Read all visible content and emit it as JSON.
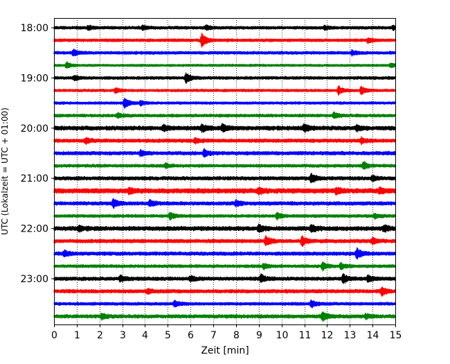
{
  "chart_data": {
    "type": "line",
    "title": "",
    "xlabel": "Zeit  [min]",
    "ylabel": "UTC (Lokalzeit = UTC + 01:00)",
    "xlim": [
      0,
      15
    ],
    "x_ticks": [
      0,
      1,
      2,
      3,
      4,
      5,
      6,
      7,
      8,
      9,
      10,
      11,
      12,
      13,
      14,
      15
    ],
    "y_tick_labels": [
      "18:00",
      "19:00",
      "20:00",
      "21:00",
      "22:00",
      "23:00"
    ],
    "y_tick_every_n_traces": 4,
    "grid": {
      "x_vertical_dotted": true
    },
    "trace_interval_minutes": 15,
    "trace_colors": [
      "#000000",
      "#ff0000",
      "#0000ff",
      "#008000"
    ],
    "traces": [
      {
        "label": "18:00",
        "color": "#000000",
        "base_amp": 2.5,
        "events": [
          [
            1.5,
            2.5
          ],
          [
            3.9,
            2.5
          ],
          [
            6.7,
            2.5
          ],
          [
            11.9,
            2.5
          ],
          [
            14.9,
            2.5
          ]
        ]
      },
      {
        "label": "18:15",
        "color": "#ff0000",
        "base_amp": 2.5,
        "events": [
          [
            6.5,
            9
          ],
          [
            13.8,
            3
          ]
        ]
      },
      {
        "label": "18:30",
        "color": "#0000ff",
        "base_amp": 2.5,
        "events": [
          [
            0.85,
            4.5
          ],
          [
            13.1,
            3
          ]
        ]
      },
      {
        "label": "18:45",
        "color": "#008000",
        "base_amp": 2,
        "events": [
          [
            0.55,
            4
          ],
          [
            14.8,
            3
          ]
        ]
      },
      {
        "label": "19:00",
        "color": "#000000",
        "base_amp": 2.5,
        "events": [
          [
            0.9,
            3
          ],
          [
            5.8,
            7
          ]
        ]
      },
      {
        "label": "19:15",
        "color": "#ff0000",
        "base_amp": 2.2,
        "events": [
          [
            2.7,
            3
          ],
          [
            12.5,
            6
          ],
          [
            13.5,
            5
          ]
        ]
      },
      {
        "label": "19:30",
        "color": "#0000ff",
        "base_amp": 2.2,
        "events": [
          [
            3.1,
            7
          ],
          [
            3.8,
            3
          ]
        ]
      },
      {
        "label": "19:45",
        "color": "#008000",
        "base_amp": 2.5,
        "events": [
          [
            2.8,
            3
          ],
          [
            12.3,
            4
          ]
        ]
      },
      {
        "label": "20:00",
        "color": "#000000",
        "base_amp": 3.5,
        "events": [
          [
            4.8,
            3.5
          ],
          [
            6.5,
            4.5
          ],
          [
            7.4,
            4.5
          ],
          [
            11.0,
            5
          ],
          [
            13.3,
            3
          ]
        ]
      },
      {
        "label": "20:15",
        "color": "#ff0000",
        "base_amp": 3,
        "events": [
          [
            1.4,
            3.5
          ],
          [
            6.2,
            3.5
          ],
          [
            13.5,
            3.5
          ]
        ]
      },
      {
        "label": "20:30",
        "color": "#0000ff",
        "base_amp": 3,
        "events": [
          [
            3.8,
            4
          ],
          [
            6.6,
            5
          ]
        ]
      },
      {
        "label": "20:45",
        "color": "#008000",
        "base_amp": 2.5,
        "events": [
          [
            4.9,
            3
          ],
          [
            13.6,
            5
          ]
        ]
      },
      {
        "label": "21:00",
        "color": "#000000",
        "base_amp": 3,
        "events": [
          [
            11.3,
            6
          ],
          [
            14.0,
            3
          ]
        ]
      },
      {
        "label": "21:15",
        "color": "#ff0000",
        "base_amp": 4,
        "events": [
          [
            3.3,
            4
          ],
          [
            9.0,
            4
          ],
          [
            12.4,
            4
          ],
          [
            14.3,
            3.5
          ]
        ]
      },
      {
        "label": "21:30",
        "color": "#0000ff",
        "base_amp": 3,
        "events": [
          [
            2.6,
            6
          ],
          [
            4.2,
            4
          ],
          [
            8.0,
            4
          ]
        ]
      },
      {
        "label": "21:45",
        "color": "#008000",
        "base_amp": 2.5,
        "events": [
          [
            5.1,
            4.5
          ],
          [
            9.8,
            4
          ],
          [
            14.1,
            3
          ]
        ]
      },
      {
        "label": "22:00",
        "color": "#000000",
        "base_amp": 3.5,
        "events": [
          [
            1.1,
            4
          ],
          [
            9.0,
            4.5
          ],
          [
            11.3,
            5
          ],
          [
            14.5,
            4
          ]
        ]
      },
      {
        "label": "22:15",
        "color": "#ff0000",
        "base_amp": 3,
        "events": [
          [
            9.3,
            7
          ],
          [
            10.9,
            6
          ],
          [
            14.0,
            4
          ]
        ]
      },
      {
        "label": "22:30",
        "color": "#0000ff",
        "base_amp": 3,
        "events": [
          [
            0.45,
            4
          ],
          [
            13.3,
            7
          ]
        ]
      },
      {
        "label": "22:45",
        "color": "#008000",
        "base_amp": 2.5,
        "events": [
          [
            9.2,
            4
          ],
          [
            11.8,
            6
          ],
          [
            12.6,
            4
          ]
        ]
      },
      {
        "label": "23:00",
        "color": "#000000",
        "base_amp": 3,
        "events": [
          [
            2.9,
            4
          ],
          [
            6.0,
            3.5
          ],
          [
            9.1,
            5
          ],
          [
            12.7,
            6.5
          ],
          [
            13.8,
            4
          ]
        ]
      },
      {
        "label": "23:15",
        "color": "#ff0000",
        "base_amp": 3,
        "events": [
          [
            4.1,
            3
          ],
          [
            14.4,
            6
          ]
        ]
      },
      {
        "label": "23:30",
        "color": "#0000ff",
        "base_amp": 2.5,
        "events": [
          [
            5.3,
            4
          ],
          [
            11.3,
            5
          ]
        ]
      },
      {
        "label": "23:45",
        "color": "#008000",
        "base_amp": 3,
        "events": [
          [
            2.1,
            3.5
          ],
          [
            11.8,
            6.5
          ],
          [
            13.7,
            3
          ]
        ]
      }
    ]
  }
}
